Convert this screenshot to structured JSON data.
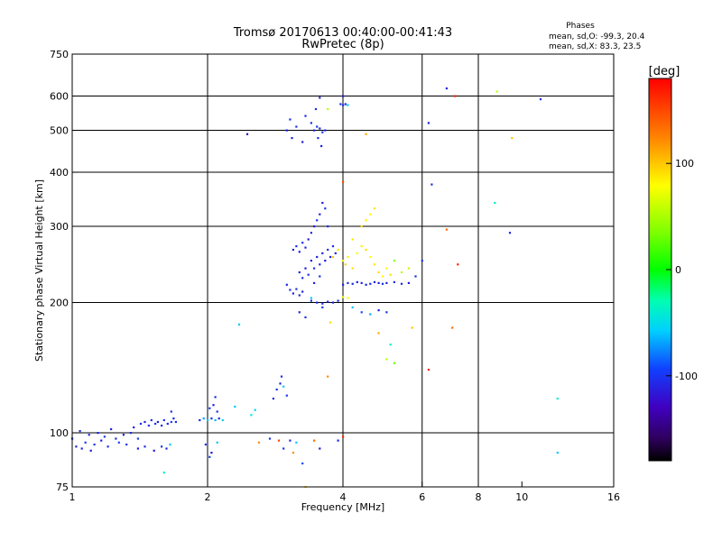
{
  "chart_data": {
    "type": "scatter",
    "title": "Tromsø 20170613 00:40:00-00:41:43",
    "subtitle": "RwPretec (8p)",
    "xlabel": "Frequency [MHz]",
    "ylabel": "Stationary phase Virtual Height [km]",
    "x_scale": "log",
    "y_scale": "log",
    "xlim": [
      1,
      16
    ],
    "ylim": [
      75,
      750
    ],
    "x_ticks": [
      1,
      2,
      4,
      6,
      8,
      10,
      16
    ],
    "x_tick_labels": [
      "1",
      "2",
      "4",
      "6",
      "8",
      "10",
      "16"
    ],
    "x_grid": [
      2,
      4,
      6,
      8
    ],
    "y_ticks": [
      75,
      100,
      200,
      300,
      400,
      500,
      600,
      750
    ],
    "y_tick_labels": [
      "75",
      "100",
      "200",
      "300",
      "400",
      "500",
      "600",
      "750"
    ],
    "y_grid": [
      100,
      200,
      300,
      400,
      500,
      600
    ],
    "grid": true,
    "stats": {
      "heading": "Phases",
      "line_o": "mean, sd,O: -99.3, 20.4",
      "line_x": "mean, sd,X:  83.3, 23.5"
    },
    "colorbar": {
      "label": "[deg]",
      "min": -180,
      "max": 180,
      "ticks": [
        100,
        0,
        -100
      ],
      "tick_labels": [
        "100",
        "0",
        "-100"
      ],
      "placement": "right"
    },
    "series_points": [
      {
        "f": 1.0,
        "h": 97,
        "p": -115
      },
      {
        "f": 1.02,
        "h": 93,
        "p": -120
      },
      {
        "f": 1.04,
        "h": 101,
        "p": -110
      },
      {
        "f": 1.05,
        "h": 92,
        "p": -118
      },
      {
        "f": 1.07,
        "h": 95,
        "p": -105
      },
      {
        "f": 1.09,
        "h": 99,
        "p": -112
      },
      {
        "f": 1.1,
        "h": 91,
        "p": -122
      },
      {
        "f": 1.12,
        "h": 94,
        "p": -108
      },
      {
        "f": 1.14,
        "h": 100,
        "p": -115
      },
      {
        "f": 1.16,
        "h": 96,
        "p": -119
      },
      {
        "f": 1.18,
        "h": 98,
        "p": -103
      },
      {
        "f": 1.2,
        "h": 93,
        "p": -111
      },
      {
        "f": 1.22,
        "h": 102,
        "p": -117
      },
      {
        "f": 1.25,
        "h": 97,
        "p": -114
      },
      {
        "f": 1.27,
        "h": 95,
        "p": -100
      },
      {
        "f": 1.3,
        "h": 99,
        "p": -121
      },
      {
        "f": 1.32,
        "h": 94,
        "p": -109
      },
      {
        "f": 1.35,
        "h": 100,
        "p": -113
      },
      {
        "f": 1.37,
        "h": 103,
        "p": -118
      },
      {
        "f": 1.4,
        "h": 97,
        "p": -106
      },
      {
        "f": 1.42,
        "h": 105,
        "p": -112
      },
      {
        "f": 1.45,
        "h": 106,
        "p": -119
      },
      {
        "f": 1.48,
        "h": 104,
        "p": -110
      },
      {
        "f": 1.5,
        "h": 107,
        "p": -115
      },
      {
        "f": 1.53,
        "h": 105,
        "p": -108
      },
      {
        "f": 1.55,
        "h": 106,
        "p": -120
      },
      {
        "f": 1.58,
        "h": 104,
        "p": -114
      },
      {
        "f": 1.6,
        "h": 107,
        "p": -111
      },
      {
        "f": 1.63,
        "h": 105,
        "p": -117
      },
      {
        "f": 1.66,
        "h": 106,
        "p": -104
      },
      {
        "f": 1.4,
        "h": 92,
        "p": -118
      },
      {
        "f": 1.45,
        "h": 93,
        "p": -112
      },
      {
        "f": 1.52,
        "h": 91,
        "p": -120
      },
      {
        "f": 1.58,
        "h": 93,
        "p": -109
      },
      {
        "f": 1.62,
        "h": 92,
        "p": -115
      },
      {
        "f": 1.65,
        "h": 94,
        "p": -60
      },
      {
        "f": 1.6,
        "h": 81,
        "p": -40
      },
      {
        "f": 1.66,
        "h": 112,
        "p": -110
      },
      {
        "f": 1.68,
        "h": 108,
        "p": -116
      },
      {
        "f": 1.7,
        "h": 106,
        "p": -112
      },
      {
        "f": 1.92,
        "h": 107,
        "p": -118
      },
      {
        "f": 1.96,
        "h": 108,
        "p": -70
      },
      {
        "f": 2.0,
        "h": 107,
        "p": -60
      },
      {
        "f": 2.04,
        "h": 108,
        "p": -110
      },
      {
        "f": 2.08,
        "h": 107,
        "p": -65
      },
      {
        "f": 2.12,
        "h": 108,
        "p": -115
      },
      {
        "f": 2.16,
        "h": 107,
        "p": -55
      },
      {
        "f": 2.1,
        "h": 112,
        "p": -112
      },
      {
        "f": 2.06,
        "h": 116,
        "p": -118
      },
      {
        "f": 2.02,
        "h": 114,
        "p": -108
      },
      {
        "f": 2.08,
        "h": 121,
        "p": -115
      },
      {
        "f": 1.98,
        "h": 94,
        "p": -110
      },
      {
        "f": 2.04,
        "h": 90,
        "p": -120
      },
      {
        "f": 2.02,
        "h": 88,
        "p": -105
      },
      {
        "f": 2.1,
        "h": 95,
        "p": -60
      },
      {
        "f": 2.5,
        "h": 110,
        "p": -40
      },
      {
        "f": 2.55,
        "h": 113,
        "p": -55
      },
      {
        "f": 2.35,
        "h": 178,
        "p": -60
      },
      {
        "f": 2.45,
        "h": 490,
        "p": -130
      },
      {
        "f": 2.6,
        "h": 95,
        "p": 140
      },
      {
        "f": 2.75,
        "h": 97,
        "p": -110
      },
      {
        "f": 2.8,
        "h": 120,
        "p": -115
      },
      {
        "f": 2.85,
        "h": 126,
        "p": -110
      },
      {
        "f": 2.9,
        "h": 130,
        "p": -118
      },
      {
        "f": 2.92,
        "h": 135,
        "p": -113
      },
      {
        "f": 2.95,
        "h": 128,
        "p": -60
      },
      {
        "f": 3.0,
        "h": 122,
        "p": -108
      },
      {
        "f": 2.88,
        "h": 96,
        "p": 160
      },
      {
        "f": 2.95,
        "h": 92,
        "p": -110
      },
      {
        "f": 3.05,
        "h": 96,
        "p": -115
      },
      {
        "f": 3.1,
        "h": 90,
        "p": 140
      },
      {
        "f": 3.15,
        "h": 95,
        "p": -60
      },
      {
        "f": 3.25,
        "h": 85,
        "p": -100
      },
      {
        "f": 3.45,
        "h": 96,
        "p": 150
      },
      {
        "f": 3.55,
        "h": 92,
        "p": -120
      },
      {
        "f": 3.3,
        "h": 75,
        "p": 120
      },
      {
        "f": 3.0,
        "h": 500,
        "p": -120
      },
      {
        "f": 3.05,
        "h": 530,
        "p": -110
      },
      {
        "f": 3.08,
        "h": 480,
        "p": -118
      },
      {
        "f": 3.15,
        "h": 510,
        "p": -112
      },
      {
        "f": 3.25,
        "h": 470,
        "p": -125
      },
      {
        "f": 3.3,
        "h": 540,
        "p": -115
      },
      {
        "f": 3.4,
        "h": 520,
        "p": -110
      },
      {
        "f": 3.45,
        "h": 500,
        "p": -118
      },
      {
        "f": 3.5,
        "h": 510,
        "p": -112
      },
      {
        "f": 3.55,
        "h": 505,
        "p": -120
      },
      {
        "f": 3.6,
        "h": 495,
        "p": -108
      },
      {
        "f": 3.65,
        "h": 500,
        "p": -115
      },
      {
        "f": 3.52,
        "h": 480,
        "p": -112
      },
      {
        "f": 3.58,
        "h": 460,
        "p": -118
      },
      {
        "f": 3.48,
        "h": 560,
        "p": -110
      },
      {
        "f": 3.55,
        "h": 595,
        "p": -120
      },
      {
        "f": 3.7,
        "h": 560,
        "p": 60
      },
      {
        "f": 3.95,
        "h": 575,
        "p": -115
      },
      {
        "f": 4.0,
        "h": 572,
        "p": -110
      },
      {
        "f": 4.05,
        "h": 575,
        "p": -118
      },
      {
        "f": 4.1,
        "h": 572,
        "p": -60
      },
      {
        "f": 4.0,
        "h": 600,
        "p": -120
      },
      {
        "f": 4.5,
        "h": 490,
        "p": 130
      },
      {
        "f": 4.0,
        "h": 380,
        "p": 160
      },
      {
        "f": 3.1,
        "h": 265,
        "p": -118
      },
      {
        "f": 3.15,
        "h": 270,
        "p": -112
      },
      {
        "f": 3.2,
        "h": 262,
        "p": -120
      },
      {
        "f": 3.25,
        "h": 275,
        "p": -110
      },
      {
        "f": 3.3,
        "h": 268,
        "p": -116
      },
      {
        "f": 3.35,
        "h": 280,
        "p": -122
      },
      {
        "f": 3.4,
        "h": 290,
        "p": -112
      },
      {
        "f": 3.45,
        "h": 300,
        "p": -118
      },
      {
        "f": 3.5,
        "h": 310,
        "p": -110
      },
      {
        "f": 3.55,
        "h": 320,
        "p": -116
      },
      {
        "f": 3.6,
        "h": 340,
        "p": -120
      },
      {
        "f": 3.65,
        "h": 330,
        "p": -108
      },
      {
        "f": 3.7,
        "h": 300,
        "p": -114
      },
      {
        "f": 3.4,
        "h": 250,
        "p": -120
      },
      {
        "f": 3.45,
        "h": 240,
        "p": -110
      },
      {
        "f": 3.5,
        "h": 255,
        "p": -118
      },
      {
        "f": 3.55,
        "h": 245,
        "p": -112
      },
      {
        "f": 3.6,
        "h": 260,
        "p": -116
      },
      {
        "f": 3.65,
        "h": 250,
        "p": -122
      },
      {
        "f": 3.7,
        "h": 265,
        "p": -110
      },
      {
        "f": 3.75,
        "h": 255,
        "p": -118
      },
      {
        "f": 3.8,
        "h": 270,
        "p": -112
      },
      {
        "f": 3.85,
        "h": 260,
        "p": -116
      },
      {
        "f": 3.2,
        "h": 235,
        "p": -118
      },
      {
        "f": 3.25,
        "h": 228,
        "p": -112
      },
      {
        "f": 3.3,
        "h": 240,
        "p": -120
      },
      {
        "f": 3.35,
        "h": 232,
        "p": -110
      },
      {
        "f": 3.45,
        "h": 222,
        "p": -116
      },
      {
        "f": 3.55,
        "h": 230,
        "p": -112
      },
      {
        "f": 3.0,
        "h": 220,
        "p": -118
      },
      {
        "f": 3.05,
        "h": 214,
        "p": -112
      },
      {
        "f": 3.1,
        "h": 210,
        "p": -120
      },
      {
        "f": 3.15,
        "h": 215,
        "p": -110
      },
      {
        "f": 3.2,
        "h": 208,
        "p": -116
      },
      {
        "f": 3.25,
        "h": 212,
        "p": -118
      },
      {
        "f": 3.4,
        "h": 202,
        "p": -112
      },
      {
        "f": 3.5,
        "h": 200,
        "p": -118
      },
      {
        "f": 3.6,
        "h": 199,
        "p": -110
      },
      {
        "f": 3.7,
        "h": 201,
        "p": -116
      },
      {
        "f": 3.8,
        "h": 200,
        "p": -120
      },
      {
        "f": 3.9,
        "h": 202,
        "p": -112
      },
      {
        "f": 4.0,
        "h": 220,
        "p": -118
      },
      {
        "f": 4.1,
        "h": 222,
        "p": -110
      },
      {
        "f": 4.2,
        "h": 221,
        "p": -116
      },
      {
        "f": 4.3,
        "h": 223,
        "p": -120
      },
      {
        "f": 4.4,
        "h": 222,
        "p": -112
      },
      {
        "f": 4.5,
        "h": 220,
        "p": -118
      },
      {
        "f": 4.6,
        "h": 221,
        "p": -110
      },
      {
        "f": 4.7,
        "h": 223,
        "p": -116
      },
      {
        "f": 4.8,
        "h": 222,
        "p": -120
      },
      {
        "f": 4.9,
        "h": 221,
        "p": -112
      },
      {
        "f": 5.0,
        "h": 222,
        "p": -118
      },
      {
        "f": 5.2,
        "h": 223,
        "p": -110
      },
      {
        "f": 5.4,
        "h": 221,
        "p": -116
      },
      {
        "f": 5.6,
        "h": 222,
        "p": -120
      },
      {
        "f": 5.8,
        "h": 230,
        "p": -112
      },
      {
        "f": 3.2,
        "h": 190,
        "p": -118
      },
      {
        "f": 3.3,
        "h": 185,
        "p": -112
      },
      {
        "f": 3.4,
        "h": 205,
        "p": -60
      },
      {
        "f": 3.6,
        "h": 195,
        "p": -110
      },
      {
        "f": 4.2,
        "h": 195,
        "p": -60
      },
      {
        "f": 4.4,
        "h": 190,
        "p": -100
      },
      {
        "f": 4.6,
        "h": 188,
        "p": -70
      },
      {
        "f": 4.8,
        "h": 192,
        "p": -118
      },
      {
        "f": 5.0,
        "h": 190,
        "p": -110
      },
      {
        "f": 3.8,
        "h": 255,
        "p": 120
      },
      {
        "f": 3.9,
        "h": 265,
        "p": 110
      },
      {
        "f": 4.0,
        "h": 250,
        "p": 100
      },
      {
        "f": 4.05,
        "h": 245,
        "p": 115
      },
      {
        "f": 4.1,
        "h": 255,
        "p": 105
      },
      {
        "f": 4.2,
        "h": 240,
        "p": 110
      },
      {
        "f": 4.3,
        "h": 260,
        "p": 95
      },
      {
        "f": 4.4,
        "h": 270,
        "p": 105
      },
      {
        "f": 4.5,
        "h": 265,
        "p": 110
      },
      {
        "f": 4.6,
        "h": 255,
        "p": 100
      },
      {
        "f": 4.7,
        "h": 245,
        "p": 108
      },
      {
        "f": 4.8,
        "h": 235,
        "p": 112
      },
      {
        "f": 4.9,
        "h": 230,
        "p": 103
      },
      {
        "f": 5.0,
        "h": 240,
        "p": 95
      },
      {
        "f": 5.1,
        "h": 232,
        "p": 110
      },
      {
        "f": 4.2,
        "h": 280,
        "p": 108
      },
      {
        "f": 4.4,
        "h": 300,
        "p": 112
      },
      {
        "f": 4.5,
        "h": 310,
        "p": 105
      },
      {
        "f": 4.7,
        "h": 330,
        "p": 110
      },
      {
        "f": 4.6,
        "h": 320,
        "p": 100
      },
      {
        "f": 5.2,
        "h": 250,
        "p": 40
      },
      {
        "f": 5.4,
        "h": 235,
        "p": 60
      },
      {
        "f": 5.6,
        "h": 240,
        "p": 70
      },
      {
        "f": 4.0,
        "h": 206,
        "p": 90
      },
      {
        "f": 4.1,
        "h": 205,
        "p": 95
      },
      {
        "f": 3.75,
        "h": 180,
        "p": 110
      },
      {
        "f": 6.2,
        "h": 520,
        "p": -118
      },
      {
        "f": 6.8,
        "h": 625,
        "p": -120
      },
      {
        "f": 7.1,
        "h": 600,
        "p": 170
      },
      {
        "f": 8.8,
        "h": 615,
        "p": 60
      },
      {
        "f": 9.5,
        "h": 480,
        "p": 120
      },
      {
        "f": 11.0,
        "h": 590,
        "p": -110
      },
      {
        "f": 6.3,
        "h": 375,
        "p": -110
      },
      {
        "f": 8.7,
        "h": 340,
        "p": -40
      },
      {
        "f": 9.4,
        "h": 290,
        "p": -118
      },
      {
        "f": 6.8,
        "h": 295,
        "p": 150
      },
      {
        "f": 7.2,
        "h": 245,
        "p": 170
      },
      {
        "f": 6.0,
        "h": 250,
        "p": -110
      },
      {
        "f": 6.2,
        "h": 140,
        "p": 170
      },
      {
        "f": 7.0,
        "h": 175,
        "p": 150
      },
      {
        "f": 5.7,
        "h": 175,
        "p": 120
      },
      {
        "f": 5.1,
        "h": 160,
        "p": -40
      },
      {
        "f": 5.0,
        "h": 148,
        "p": 60
      },
      {
        "f": 5.2,
        "h": 145,
        "p": 30
      },
      {
        "f": 4.8,
        "h": 170,
        "p": 130
      },
      {
        "f": 3.7,
        "h": 135,
        "p": 140
      },
      {
        "f": 4.0,
        "h": 98,
        "p": 170
      },
      {
        "f": 3.9,
        "h": 96,
        "p": -118
      },
      {
        "f": 12.0,
        "h": 120,
        "p": -40
      },
      {
        "f": 12.0,
        "h": 90,
        "p": -60
      },
      {
        "f": 2.3,
        "h": 115,
        "p": -60
      }
    ]
  }
}
